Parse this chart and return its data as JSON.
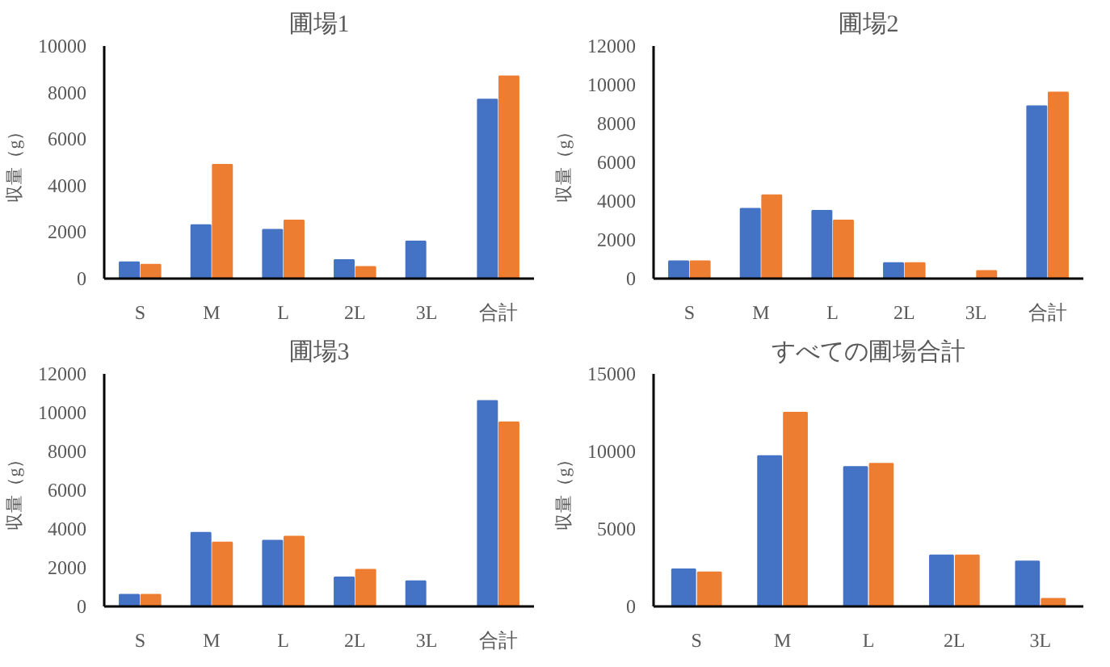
{
  "chart_data": [
    {
      "type": "bar",
      "title": "圃場1",
      "ylabel": "収量（g）",
      "categories": [
        "S",
        "M",
        "L",
        "2L",
        "3L",
        "合計"
      ],
      "ylim": [
        0,
        10000
      ],
      "yticks": [
        0,
        2000,
        4000,
        6000,
        8000,
        10000
      ],
      "series": [
        {
          "color": "#4472c4",
          "values": [
            700,
            2300,
            2100,
            800,
            1600,
            7700
          ]
        },
        {
          "color": "#ed7d31",
          "values": [
            600,
            4900,
            2500,
            500,
            null,
            8700
          ]
        }
      ]
    },
    {
      "type": "bar",
      "title": "圃場2",
      "ylabel": "収量（g）",
      "categories": [
        "S",
        "M",
        "L",
        "2L",
        "3L",
        "合計"
      ],
      "ylim": [
        0,
        12000
      ],
      "yticks": [
        0,
        2000,
        4000,
        6000,
        8000,
        10000,
        12000
      ],
      "series": [
        {
          "color": "#4472c4",
          "values": [
            900,
            3600,
            3500,
            800,
            null,
            8900
          ]
        },
        {
          "color": "#ed7d31",
          "values": [
            900,
            4300,
            3000,
            800,
            400,
            9600
          ]
        }
      ]
    },
    {
      "type": "bar",
      "title": "圃場3",
      "ylabel": "収量（g）",
      "categories": [
        "S",
        "M",
        "L",
        "2L",
        "3L",
        "合計"
      ],
      "ylim": [
        0,
        12000
      ],
      "yticks": [
        0,
        2000,
        4000,
        6000,
        8000,
        10000,
        12000
      ],
      "series": [
        {
          "color": "#4472c4",
          "values": [
            600,
            3800,
            3400,
            1500,
            1300,
            10600
          ]
        },
        {
          "color": "#ed7d31",
          "values": [
            600,
            3300,
            3600,
            1900,
            null,
            9500
          ]
        }
      ]
    },
    {
      "type": "bar",
      "title": "すべての圃場合計",
      "ylabel": "収量（g）",
      "categories": [
        "S",
        "M",
        "L",
        "2L",
        "3L"
      ],
      "ylim": [
        0,
        15000
      ],
      "yticks": [
        0,
        5000,
        10000,
        15000
      ],
      "series": [
        {
          "color": "#4472c4",
          "values": [
            2400,
            9700,
            9000,
            3300,
            2900
          ]
        },
        {
          "color": "#ed7d31",
          "values": [
            2200,
            12500,
            9200,
            3300,
            500
          ]
        }
      ]
    }
  ]
}
